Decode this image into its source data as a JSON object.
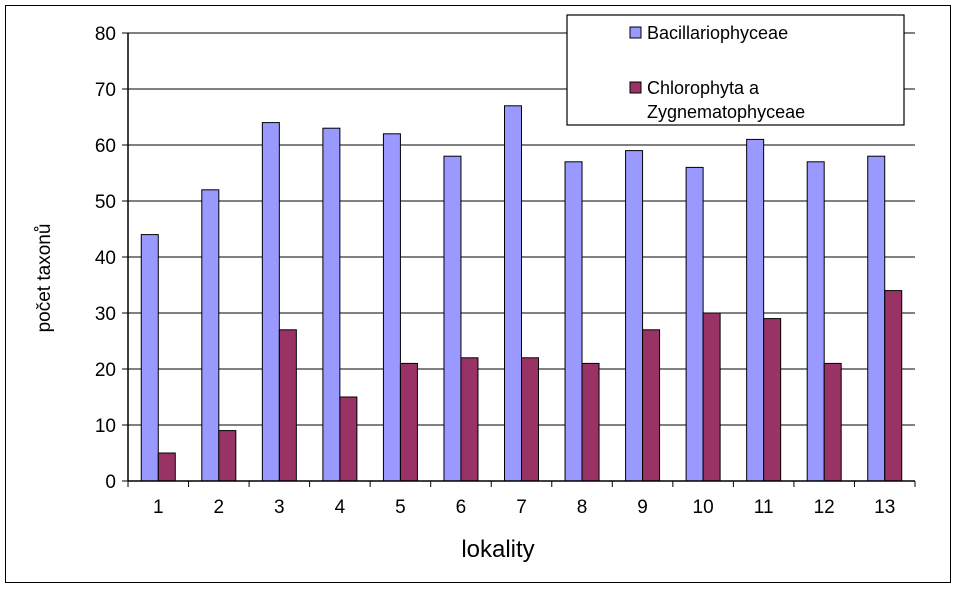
{
  "chart_data": {
    "type": "bar",
    "xlabel": "lokality",
    "ylabel": "počet taxonů",
    "categories": [
      "1",
      "2",
      "3",
      "4",
      "5",
      "6",
      "7",
      "8",
      "9",
      "10",
      "11",
      "12",
      "13"
    ],
    "ylim": [
      0,
      80
    ],
    "yticks": [
      0,
      10,
      20,
      30,
      40,
      50,
      60,
      70,
      80
    ],
    "grid": true,
    "legend_position": "top-right",
    "series": [
      {
        "name": "Bacillariophyceae",
        "color": "#9999FF",
        "values": [
          44,
          52,
          64,
          63,
          62,
          58,
          67,
          57,
          59,
          56,
          61,
          57,
          58
        ]
      },
      {
        "name": "Chlorophyta a Zygnematophyceae",
        "color": "#993366",
        "name_lines": [
          "Chlorophyta a",
          "Zygnematophyceae"
        ],
        "values": [
          5,
          9,
          27,
          15,
          21,
          22,
          22,
          21,
          27,
          30,
          29,
          21,
          34
        ]
      }
    ]
  }
}
